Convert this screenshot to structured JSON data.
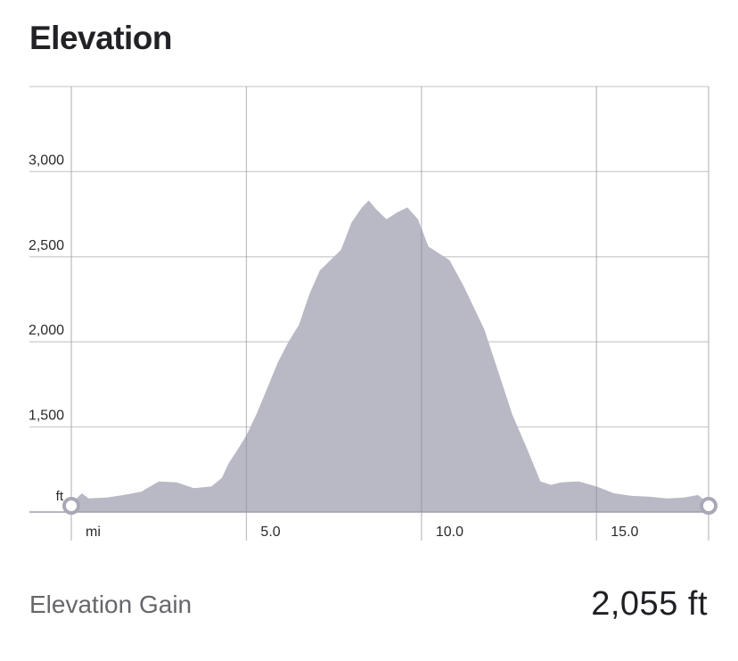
{
  "title": "Elevation",
  "summary": {
    "gain_label": "Elevation Gain",
    "gain_value": "2,055 ft"
  },
  "colors": {
    "area_fill": "#b9b9c6",
    "grid": "#cfcfd3",
    "axis": "#bdbdc2",
    "marker_fill": "#ffffff",
    "marker_stroke": "#a9a9b6"
  },
  "chart_data": {
    "type": "area",
    "xlabel": "mi",
    "ylabel": "ft",
    "xlim": [
      0,
      18.2
    ],
    "ylim": [
      1000,
      3500
    ],
    "x_ticks": [
      {
        "value": 0,
        "label": "mi"
      },
      {
        "value": 5,
        "label": "5.0"
      },
      {
        "value": 10,
        "label": "10.0"
      },
      {
        "value": 15,
        "label": "15.0"
      }
    ],
    "y_ticks": [
      {
        "value": 1000,
        "label": "ft"
      },
      {
        "value": 1500,
        "label": "1,500"
      },
      {
        "value": 2000,
        "label": "2,000"
      },
      {
        "value": 2500,
        "label": "2,500"
      },
      {
        "value": 3000,
        "label": "3,000"
      }
    ],
    "grid": true,
    "start_end_markers": true,
    "series": [
      {
        "x": [
          0,
          0.3,
          0.5,
          1.0,
          1.5,
          2.0,
          2.5,
          3.0,
          3.5,
          4.0,
          4.3,
          4.5,
          4.7,
          5.0,
          5.3,
          5.6,
          5.9,
          6.2,
          6.5,
          6.8,
          7.1,
          7.4,
          7.7,
          8.0,
          8.3,
          8.5,
          8.7,
          9.0,
          9.3,
          9.6,
          9.9,
          10.2,
          10.5,
          10.8,
          11.2,
          11.5,
          11.8,
          12.2,
          12.6,
          13.0,
          13.4,
          13.7,
          14.0,
          14.5,
          15.0,
          15.5,
          16.0,
          16.5,
          17.0,
          17.5,
          17.9,
          18.2
        ],
        "y": [
          1050,
          1110,
          1080,
          1085,
          1100,
          1120,
          1180,
          1175,
          1140,
          1150,
          1200,
          1290,
          1350,
          1450,
          1580,
          1730,
          1880,
          2000,
          2100,
          2280,
          2420,
          2480,
          2540,
          2700,
          2790,
          2830,
          2780,
          2720,
          2760,
          2790,
          2720,
          2560,
          2520,
          2480,
          2330,
          2200,
          2070,
          1820,
          1570,
          1380,
          1180,
          1160,
          1175,
          1180,
          1150,
          1110,
          1095,
          1090,
          1080,
          1085,
          1100,
          1050
        ]
      }
    ]
  }
}
